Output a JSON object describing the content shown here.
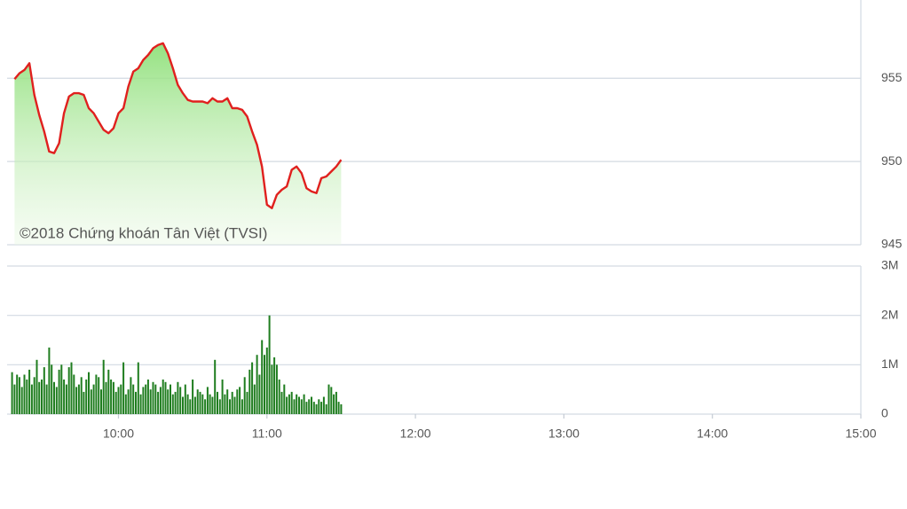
{
  "chart_data": [
    {
      "type": "line",
      "annotation": "©2018 Chứng khoán Tân Việt (TVSI)",
      "xlim": [
        555,
        900
      ],
      "ylim": [
        945,
        959.7
      ],
      "yticks": [
        945,
        950,
        955
      ],
      "grid": true,
      "series": [
        {
          "color": "#e0201e",
          "x": [
            558,
            560,
            562,
            564,
            566,
            568,
            570,
            572,
            574,
            576,
            578,
            580,
            582,
            584,
            586,
            588,
            590,
            592,
            594,
            596,
            598,
            600,
            602,
            604,
            606,
            608,
            610,
            612,
            614,
            616,
            618,
            620,
            622,
            624,
            626,
            628,
            630,
            632,
            634,
            636,
            638,
            640,
            642,
            644,
            646,
            648,
            650,
            652,
            654,
            656,
            658,
            660,
            662,
            664,
            666,
            668,
            670,
            672,
            674,
            676,
            678,
            680,
            682,
            684,
            686,
            688,
            690
          ],
          "values": [
            954.95,
            955.3,
            955.5,
            955.9,
            954.0,
            952.8,
            951.8,
            950.6,
            950.5,
            951.1,
            952.9,
            953.9,
            954.1,
            954.1,
            954.0,
            953.2,
            952.9,
            952.4,
            951.9,
            951.7,
            952.0,
            952.9,
            953.2,
            954.5,
            955.4,
            955.6,
            956.1,
            956.4,
            956.8,
            957.0,
            957.1,
            956.5,
            955.6,
            954.6,
            954.1,
            953.7,
            953.6,
            953.6,
            953.6,
            953.5,
            953.8,
            953.6,
            953.6,
            953.8,
            953.2,
            953.2,
            953.1,
            952.7,
            951.8,
            951.0,
            949.7,
            947.4,
            947.2,
            948.0,
            948.3,
            948.5,
            949.5,
            949.7,
            949.3,
            948.4,
            948.2,
            948.1,
            949.0,
            949.1,
            949.4,
            949.7,
            950.1
          ]
        }
      ]
    },
    {
      "type": "bar",
      "xlim": [
        555,
        900
      ],
      "xticks": [
        {
          "value": 600,
          "label": "10:00"
        },
        {
          "value": 660,
          "label": "11:00"
        },
        {
          "value": 720,
          "label": "12:00"
        },
        {
          "value": 780,
          "label": "13:00"
        },
        {
          "value": 840,
          "label": "14:00"
        },
        {
          "value": 900,
          "label": "15:00"
        }
      ],
      "ylim": [
        0,
        3
      ],
      "yticks": [
        0,
        {
          "value": 1,
          "label": "1M"
        },
        {
          "value": 2,
          "label": "2M"
        },
        {
          "value": 3,
          "label": "3M"
        }
      ],
      "grid": true,
      "color": "#1f7d1f",
      "x": [
        557,
        558,
        559,
        560,
        561,
        562,
        563,
        564,
        565,
        566,
        567,
        568,
        569,
        570,
        571,
        572,
        573,
        574,
        575,
        576,
        577,
        578,
        579,
        580,
        581,
        582,
        583,
        584,
        585,
        586,
        587,
        588,
        589,
        590,
        591,
        592,
        593,
        594,
        595,
        596,
        597,
        598,
        599,
        600,
        601,
        602,
        603,
        604,
        605,
        606,
        607,
        608,
        609,
        610,
        611,
        612,
        613,
        614,
        615,
        616,
        617,
        618,
        619,
        620,
        621,
        622,
        623,
        624,
        625,
        626,
        627,
        628,
        629,
        630,
        631,
        632,
        633,
        634,
        635,
        636,
        637,
        638,
        639,
        640,
        641,
        642,
        643,
        644,
        645,
        646,
        647,
        648,
        649,
        650,
        651,
        652,
        653,
        654,
        655,
        656,
        657,
        658,
        659,
        660,
        661,
        662,
        663,
        664,
        665,
        666,
        667,
        668,
        669,
        670,
        671,
        672,
        673,
        674,
        675,
        676,
        677,
        678,
        679,
        680,
        681,
        682,
        683,
        684,
        685,
        686,
        687,
        688,
        689,
        690
      ],
      "values": [
        0.85,
        0.6,
        0.8,
        0.75,
        0.55,
        0.8,
        0.7,
        0.9,
        0.6,
        0.75,
        1.1,
        0.65,
        0.7,
        0.95,
        0.6,
        1.35,
        1.0,
        0.65,
        0.55,
        0.9,
        1.0,
        0.7,
        0.6,
        0.95,
        1.05,
        0.8,
        0.55,
        0.6,
        0.75,
        0.45,
        0.7,
        0.85,
        0.5,
        0.6,
        0.8,
        0.75,
        0.5,
        1.1,
        0.65,
        0.9,
        0.7,
        0.65,
        0.45,
        0.55,
        0.6,
        1.05,
        0.4,
        0.5,
        0.75,
        0.6,
        0.45,
        1.05,
        0.4,
        0.55,
        0.6,
        0.7,
        0.5,
        0.65,
        0.6,
        0.45,
        0.55,
        0.7,
        0.65,
        0.5,
        0.6,
        0.4,
        0.45,
        0.65,
        0.55,
        0.35,
        0.6,
        0.4,
        0.3,
        0.7,
        0.35,
        0.5,
        0.45,
        0.4,
        0.3,
        0.55,
        0.4,
        0.35,
        1.1,
        0.45,
        0.3,
        0.7,
        0.4,
        0.5,
        0.3,
        0.45,
        0.35,
        0.5,
        0.55,
        0.3,
        0.75,
        0.45,
        0.9,
        1.05,
        0.6,
        1.2,
        0.8,
        1.5,
        1.2,
        1.35,
        2.0,
        1.0,
        1.15,
        1.0,
        0.7,
        0.45,
        0.6,
        0.35,
        0.4,
        0.45,
        0.3,
        0.4,
        0.35,
        0.3,
        0.4,
        0.25,
        0.3,
        0.35,
        0.25,
        0.2,
        0.3,
        0.25,
        0.35,
        0.2,
        0.6,
        0.55,
        0.4,
        0.45,
        0.25,
        0.2
      ]
    }
  ]
}
